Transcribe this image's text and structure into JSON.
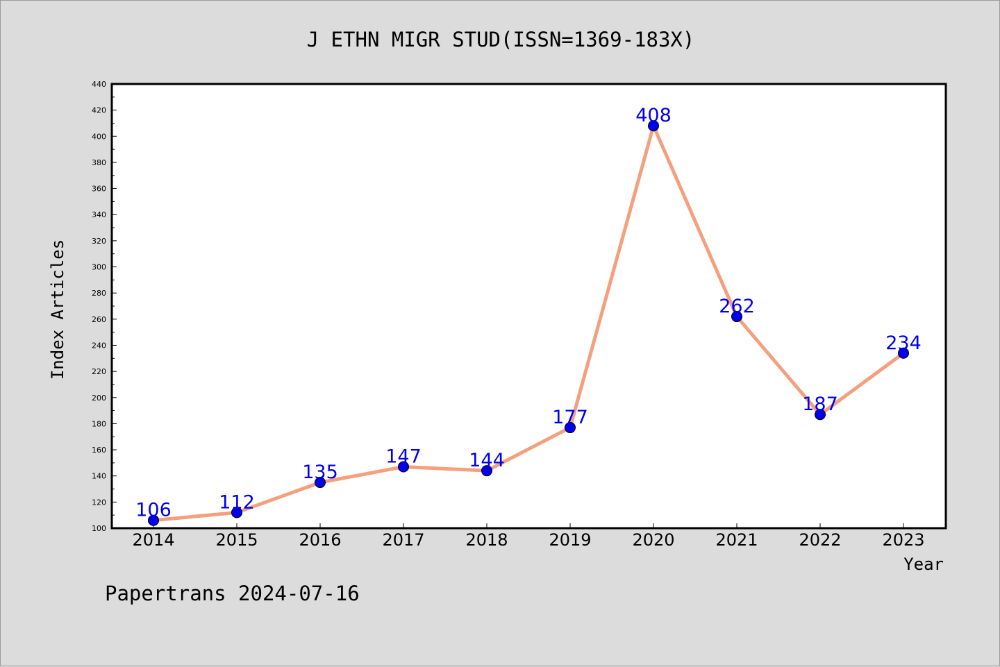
{
  "chart_data": {
    "type": "line",
    "title": "J ETHN MIGR STUD(ISSN=1369-183X)",
    "xlabel": "Year",
    "ylabel": "Index Articles",
    "categories": [
      "2014",
      "2015",
      "2016",
      "2017",
      "2018",
      "2019",
      "2020",
      "2021",
      "2022",
      "2023"
    ],
    "series": [
      {
        "values": [
          106,
          112,
          135,
          147,
          144,
          177,
          408,
          262,
          187,
          234
        ]
      }
    ],
    "data_labels": [
      "106",
      "112",
      "135",
      "147",
      "144",
      "177",
      "408",
      "262",
      "187",
      "234"
    ],
    "y_ticks": [
      "100",
      "120",
      "140",
      "160",
      "180",
      "200",
      "220",
      "240",
      "260",
      "280",
      "300",
      "320",
      "340",
      "360",
      "380",
      "400",
      "420",
      "440"
    ],
    "ylim": [
      100,
      440
    ],
    "grid": false,
    "legend": "none",
    "colors": {
      "line": "#f4a07e",
      "marker": "#0000ee",
      "marker_edge": "#000000",
      "data_label": "#0000ee",
      "background": "#dcdcdc",
      "plot_background": "#ffffff"
    }
  },
  "footer": {
    "text": "Papertrans 2024-07-16"
  }
}
